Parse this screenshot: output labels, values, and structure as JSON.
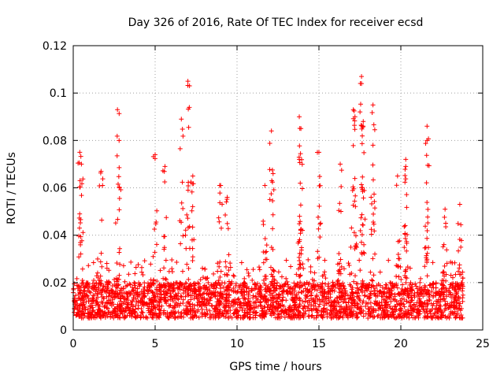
{
  "chart_data": {
    "type": "scatter",
    "title": "Day 326 of 2016, Rate Of TEC Index for receiver ecsd",
    "xlabel": "GPS time / hours",
    "ylabel": "ROTI / TECUs",
    "xlim": [
      0,
      25
    ],
    "ylim": [
      0,
      0.12
    ],
    "xticks": [
      0,
      5,
      10,
      15,
      20,
      25
    ],
    "xtick_labels": [
      "0",
      "5",
      "10",
      "15",
      "20",
      "25"
    ],
    "yticks": [
      0,
      0.02,
      0.04,
      0.06,
      0.08,
      0.1,
      0.12
    ],
    "ytick_labels": [
      "0",
      "0.02",
      "0.04",
      "0.06",
      "0.08",
      "0.1",
      "0.12"
    ],
    "grid": true,
    "marker": "+",
    "marker_color": "#ff0000",
    "series": [
      {
        "name": "ROTI",
        "x_range": [
          0,
          23.8
        ],
        "baseline_band": [
          0.005,
          0.02
        ],
        "notable_points": [
          {
            "x": 0.4,
            "y": 0.075
          },
          {
            "x": 0.5,
            "y": 0.07
          },
          {
            "x": 1.7,
            "y": 0.067
          },
          {
            "x": 2.7,
            "y": 0.093
          },
          {
            "x": 2.8,
            "y": 0.08
          },
          {
            "x": 5.0,
            "y": 0.074
          },
          {
            "x": 5.6,
            "y": 0.069
          },
          {
            "x": 6.6,
            "y": 0.089
          },
          {
            "x": 7.0,
            "y": 0.105
          },
          {
            "x": 7.3,
            "y": 0.065
          },
          {
            "x": 9.0,
            "y": 0.061
          },
          {
            "x": 9.4,
            "y": 0.056
          },
          {
            "x": 11.7,
            "y": 0.061
          },
          {
            "x": 12.1,
            "y": 0.084
          },
          {
            "x": 12.2,
            "y": 0.066
          },
          {
            "x": 13.8,
            "y": 0.09
          },
          {
            "x": 13.9,
            "y": 0.085
          },
          {
            "x": 13.8,
            "y": 0.072
          },
          {
            "x": 15.0,
            "y": 0.075
          },
          {
            "x": 16.3,
            "y": 0.07
          },
          {
            "x": 17.1,
            "y": 0.093
          },
          {
            "x": 17.2,
            "y": 0.09
          },
          {
            "x": 17.6,
            "y": 0.107
          },
          {
            "x": 17.6,
            "y": 0.104
          },
          {
            "x": 17.7,
            "y": 0.086
          },
          {
            "x": 18.3,
            "y": 0.095
          },
          {
            "x": 18.3,
            "y": 0.078
          },
          {
            "x": 19.8,
            "y": 0.065
          },
          {
            "x": 20.3,
            "y": 0.072
          },
          {
            "x": 20.3,
            "y": 0.069
          },
          {
            "x": 21.6,
            "y": 0.086
          },
          {
            "x": 21.6,
            "y": 0.08
          },
          {
            "x": 22.7,
            "y": 0.051
          },
          {
            "x": 23.6,
            "y": 0.053
          }
        ]
      }
    ]
  }
}
